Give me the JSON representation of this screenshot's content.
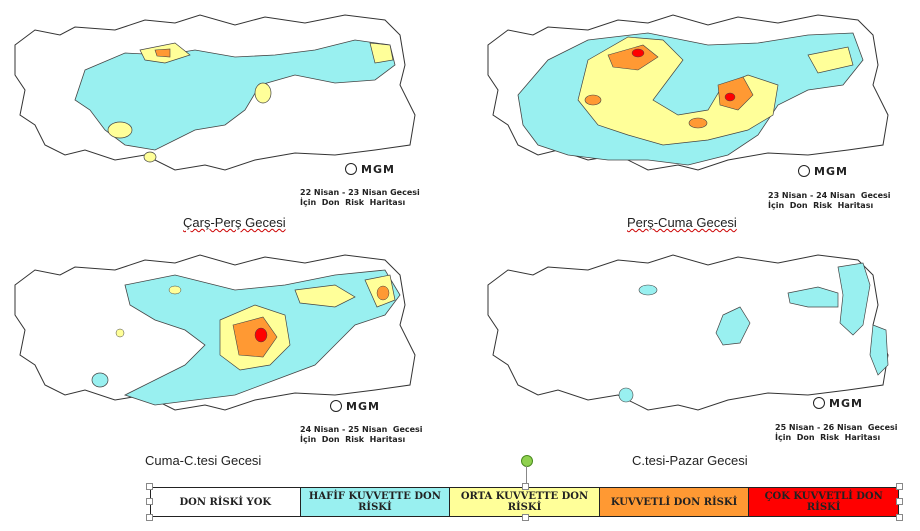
{
  "panels": [
    {
      "id": "p1",
      "caption_line1": "22 Nisan - 23 Nisan Gecesi",
      "caption_line2": "İçin  Don  Risk  Haritası",
      "night": "Çarş-Perş Gecesi"
    },
    {
      "id": "p2",
      "caption_line1": "23 Nisan - 24 Nisan  Gecesi",
      "caption_line2": "İçin  Don  Risk  Haritası",
      "night": "Perş-Cuma Gecesi"
    },
    {
      "id": "p3",
      "caption_line1": "24 Nisan - 25 Nisan  Gecesi",
      "caption_line2": "İçin  Don  Risk  Haritası",
      "night": "Cuma-C.tesi Gecesi"
    },
    {
      "id": "p4",
      "caption_line1": "25 Nisan - 26 Nisan  Gecesi",
      "caption_line2": "İçin  Don  Risk  Haritası",
      "night": "C.tesi-Pazar Gecesi"
    }
  ],
  "brand": "MGM",
  "legend": [
    {
      "label": "DON RİSKİ YOK",
      "color": "#ffffff"
    },
    {
      "label": "HAFİF KUVVETTE DON RİSKİ",
      "color": "#99f0f0"
    },
    {
      "label": "ORTA KUVVETTE DON RİSKİ",
      "color": "#ffff99"
    },
    {
      "label": "KUVVETLİ DON RİSKİ",
      "color": "#ff9933"
    },
    {
      "label": "ÇOK KUVVETLİ DON RİSKİ",
      "color": "#ff0000"
    }
  ],
  "colors": {
    "none": "#ffffff",
    "light": "#99f0f0",
    "moderate": "#ffff99",
    "strong": "#ff9933",
    "very_strong": "#ff0000",
    "border": "#333333"
  }
}
